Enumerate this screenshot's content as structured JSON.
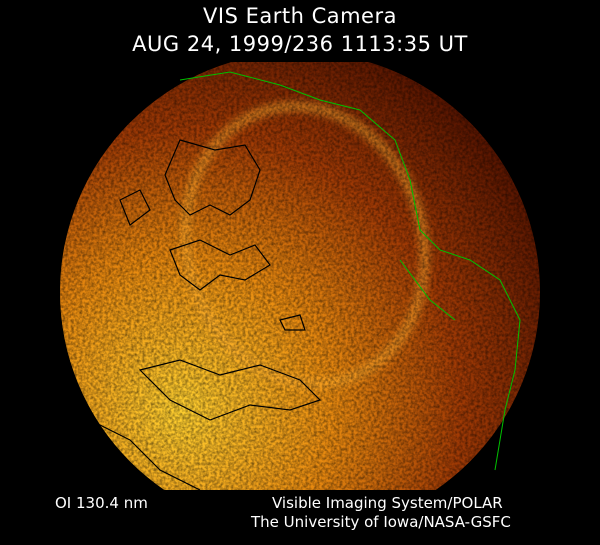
{
  "header": {
    "title": "VIS Earth Camera",
    "timestamp": "AUG 24, 1999/236 1113:35 UT"
  },
  "footer": {
    "wavelength": "OI  130.4 nm",
    "instrument": "Visible Imaging System/POLAR",
    "institution": "The University of Iowa/NASA-GSFC"
  },
  "colors": {
    "background": "#000000",
    "earth_bright": "#ffc020",
    "earth_dark": "#5a1200",
    "coastline_dark_side": "#000000",
    "coastline_day_side": "#00c000"
  }
}
